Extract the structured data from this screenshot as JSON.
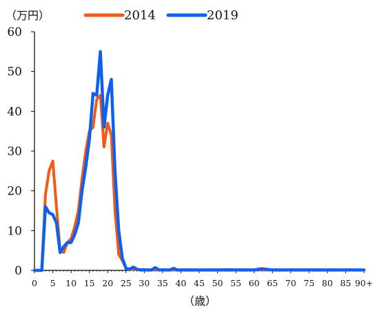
{
  "chart_data": {
    "type": "line",
    "y_unit_label": "（万円）",
    "x_axis_label": "（歳）",
    "ylim": [
      0,
      60
    ],
    "y_ticks": [
      0,
      10,
      20,
      30,
      40,
      50,
      60
    ],
    "x_ticks": [
      "0",
      "5",
      "10",
      "15",
      "20",
      "25",
      "30",
      "35",
      "40",
      "45",
      "50",
      "55",
      "60",
      "65",
      "70",
      "75",
      "80",
      "85",
      "90+"
    ],
    "xlim": [
      0,
      90
    ],
    "grid": false,
    "legend_position": "top",
    "series": [
      {
        "name": "2014",
        "color": "#f05a14",
        "x": [
          0,
          1,
          2,
          3,
          4,
          5,
          6,
          7,
          8,
          9,
          10,
          11,
          12,
          13,
          14,
          15,
          16,
          17,
          18,
          19,
          20,
          21,
          22,
          23,
          24,
          25,
          26,
          27,
          28,
          29,
          30,
          31,
          32,
          33,
          34,
          35,
          36,
          37,
          38,
          39,
          40,
          45,
          50,
          53,
          55,
          60,
          65,
          70,
          75,
          80,
          85,
          90
        ],
        "y": [
          0,
          0,
          0,
          19,
          25,
          27.5,
          16,
          5,
          4.5,
          7,
          8,
          11,
          15,
          23,
          30,
          35,
          36,
          43,
          44,
          31,
          37,
          34,
          15,
          4,
          2.5,
          0.5,
          0.3,
          0.2,
          0.2,
          0.2,
          0.2,
          0.1,
          0.1,
          0.1,
          0.1,
          0.1,
          0.1,
          0.1,
          0.1,
          0.1,
          0.1,
          0.1,
          0.1,
          0.2,
          0.1,
          0.1,
          0.1,
          0.1,
          0.1,
          0.1,
          0.1,
          0.1
        ]
      },
      {
        "name": "2019",
        "color": "#1060f0",
        "x": [
          0,
          1,
          2,
          3,
          4,
          5,
          6,
          7,
          8,
          9,
          10,
          11,
          12,
          13,
          14,
          15,
          16,
          17,
          18,
          19,
          20,
          21,
          22,
          23,
          24,
          25,
          26,
          27,
          28,
          29,
          30,
          31,
          32,
          33,
          34,
          35,
          36,
          37,
          38,
          39,
          40,
          45,
          50,
          55,
          60,
          62,
          65,
          70,
          75,
          80,
          85,
          90
        ],
        "y": [
          0,
          0,
          0,
          16,
          14.5,
          14,
          12,
          4.5,
          6,
          7,
          7,
          9,
          12,
          20,
          26,
          33,
          44.5,
          44,
          55,
          36,
          44,
          48,
          25,
          10,
          3,
          0.5,
          0.3,
          0.8,
          0.3,
          0.1,
          0.1,
          0.1,
          0.1,
          0.7,
          0.1,
          0.1,
          0.1,
          0.1,
          0.5,
          0.1,
          0.1,
          0.1,
          0.1,
          0.1,
          0.1,
          0.4,
          0.1,
          0.1,
          0.1,
          0.1,
          0.1,
          0.1
        ]
      }
    ]
  }
}
